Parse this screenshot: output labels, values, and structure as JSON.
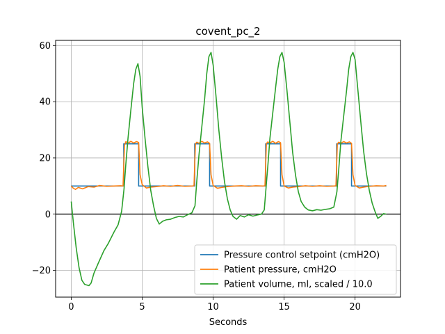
{
  "chart_data": {
    "type": "line",
    "title": "covent_pc_2",
    "xlabel": "Seconds",
    "ylabel": "",
    "xlim": [
      -1.1,
      23.2
    ],
    "ylim": [
      -29.5,
      61.8
    ],
    "xticks": [
      0,
      5,
      10,
      15,
      20
    ],
    "yticks": [
      -20,
      0,
      20,
      40,
      60
    ],
    "xtick_labels": [
      "0",
      "5",
      "10",
      "15",
      "20"
    ],
    "ytick_labels": [
      "−20",
      "0",
      "20",
      "40",
      "60"
    ],
    "grid": true,
    "zero_line": 0,
    "legend_position": "lower-right",
    "series": [
      {
        "name": "Pressure control setpoint (cmH2O)",
        "color": "#1f77b4",
        "x": [
          0,
          3.7,
          3.7,
          4.75,
          4.75,
          8.7,
          8.7,
          9.75,
          9.75,
          13.7,
          13.7,
          14.75,
          14.75,
          18.7,
          18.7,
          19.75,
          19.75,
          22.2
        ],
        "y": [
          10,
          10,
          25,
          25,
          10,
          10,
          25,
          25,
          10,
          10,
          25,
          25,
          10,
          10,
          25,
          25,
          10,
          10
        ]
      },
      {
        "name": "Patient pressure, cmH2O",
        "color": "#ff7f0e",
        "x": [
          0,
          0.15,
          0.3,
          0.5,
          0.8,
          1.2,
          1.6,
          2.0,
          2.5,
          3.0,
          3.5,
          3.65,
          3.75,
          3.85,
          4.0,
          4.2,
          4.4,
          4.6,
          4.75,
          4.85,
          5.0,
          5.3,
          5.6,
          6.0,
          6.5,
          7.0,
          7.5,
          8.0,
          8.5,
          8.65,
          8.75,
          8.85,
          9.0,
          9.2,
          9.4,
          9.6,
          9.75,
          9.85,
          10.0,
          10.3,
          10.6,
          11.0,
          11.5,
          12.0,
          12.5,
          13.0,
          13.5,
          13.65,
          13.75,
          13.85,
          14.0,
          14.2,
          14.4,
          14.6,
          14.75,
          14.85,
          15.0,
          15.3,
          15.6,
          16.0,
          16.5,
          17.0,
          17.5,
          18.0,
          18.5,
          18.65,
          18.75,
          18.85,
          19.0,
          19.2,
          19.4,
          19.6,
          19.75,
          19.85,
          20.0,
          20.3,
          20.6,
          21.0,
          21.5,
          22.0,
          22.2
        ],
        "y": [
          10,
          9.2,
          8.8,
          9.5,
          9.0,
          9.8,
          9.6,
          10.2,
          9.9,
          10.0,
          10.1,
          10.0,
          24.5,
          25.8,
          25.2,
          25.9,
          25.3,
          25.8,
          25.5,
          14.0,
          10.5,
          9.3,
          9.6,
          9.8,
          10.1,
          9.9,
          10.2,
          9.9,
          10.0,
          10.1,
          25.0,
          25.6,
          25.2,
          25.9,
          25.3,
          25.7,
          25.2,
          14.0,
          10.2,
          9.2,
          9.5,
          9.8,
          10.0,
          10.1,
          9.9,
          10.1,
          10.0,
          10.1,
          25.1,
          25.7,
          25.3,
          25.9,
          25.2,
          25.8,
          25.4,
          14.0,
          10.0,
          9.3,
          9.6,
          9.8,
          10.1,
          9.9,
          10.1,
          9.9,
          10.0,
          10.1,
          25.0,
          25.6,
          25.2,
          25.8,
          25.3,
          25.7,
          25.2,
          14.0,
          10.2,
          9.3,
          9.6,
          9.9,
          10.1,
          10.0,
          10.2
        ]
      },
      {
        "name": "Patient volume, ml, scaled / 10.0",
        "color": "#2ca02c",
        "x": [
          0,
          0.15,
          0.35,
          0.55,
          0.75,
          0.95,
          1.1,
          1.25,
          1.4,
          1.6,
          1.9,
          2.3,
          2.6,
          3.0,
          3.3,
          3.55,
          3.72,
          3.85,
          4.0,
          4.2,
          4.4,
          4.55,
          4.7,
          4.85,
          5.0,
          5.2,
          5.4,
          5.6,
          5.8,
          6.0,
          6.2,
          6.45,
          6.7,
          7.0,
          7.3,
          7.6,
          7.9,
          8.2,
          8.5,
          8.72,
          8.85,
          9.0,
          9.2,
          9.4,
          9.55,
          9.7,
          9.85,
          10.0,
          10.2,
          10.4,
          10.6,
          10.8,
          11.0,
          11.2,
          11.4,
          11.65,
          11.9,
          12.2,
          12.5,
          12.8,
          13.1,
          13.4,
          13.6,
          13.72,
          13.85,
          14.0,
          14.2,
          14.4,
          14.55,
          14.7,
          14.85,
          15.0,
          15.2,
          15.4,
          15.6,
          15.8,
          16.0,
          16.2,
          16.45,
          16.7,
          17.0,
          17.3,
          17.6,
          17.9,
          18.2,
          18.5,
          18.72,
          18.85,
          19.0,
          19.2,
          19.4,
          19.55,
          19.7,
          19.85,
          20.0,
          20.2,
          20.4,
          20.6,
          20.8,
          21.0,
          21.2,
          21.4,
          21.6,
          21.8,
          22.0,
          22.2
        ],
        "y": [
          4.5,
          -3,
          -12,
          -19,
          -23.5,
          -25.0,
          -25.2,
          -25.4,
          -24.5,
          -21.0,
          -17.5,
          -13.0,
          -10.5,
          -6.5,
          -3.8,
          1.0,
          9,
          18,
          27,
          37,
          46.5,
          51.5,
          53.5,
          49,
          38,
          27,
          17,
          8.5,
          3.0,
          -1.5,
          -3.5,
          -2.5,
          -2.0,
          -1.8,
          -1.2,
          -0.8,
          -1.0,
          -0.2,
          0.5,
          3,
          12,
          21,
          31,
          41,
          50,
          56,
          57.5,
          53,
          42,
          30,
          20,
          11.5,
          5.5,
          1.5,
          -0.8,
          -1.8,
          -0.5,
          -1.0,
          -0.2,
          -0.7,
          -0.3,
          0.0,
          1.5,
          9,
          17,
          27,
          36,
          45,
          51.5,
          56,
          57.5,
          54,
          44,
          33,
          22,
          14,
          8,
          4.5,
          2.5,
          1.5,
          1.2,
          1.6,
          1.4,
          1.7,
          1.9,
          2.5,
          8,
          16,
          26,
          35,
          44,
          51.5,
          56,
          57.5,
          55,
          44,
          33,
          22.5,
          14.5,
          8.5,
          4.0,
          1.0,
          -1.5,
          -0.8,
          0.2,
          0.0
        ]
      }
    ]
  }
}
